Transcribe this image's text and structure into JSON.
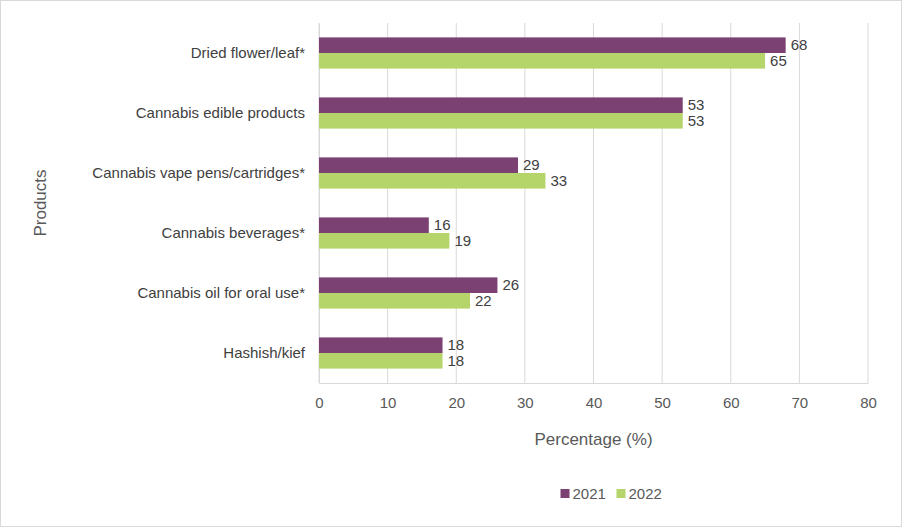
{
  "chart_data": {
    "type": "bar",
    "orientation": "horizontal",
    "categories": [
      "Dried flower/leaf*",
      "Cannabis edible products",
      "Cannabis vape pens/cartridges*",
      "Cannabis beverages*",
      "Cannabis oil for oral use*",
      "Hashish/kief"
    ],
    "series": [
      {
        "name": "2021",
        "color": "#7b4173",
        "values": [
          68,
          53,
          29,
          16,
          26,
          18
        ]
      },
      {
        "name": "2022",
        "color": "#b5d56a",
        "values": [
          65,
          53,
          33,
          19,
          22,
          18
        ]
      }
    ],
    "x_label": "Percentage (%)",
    "y_label": "Products",
    "xlim": [
      0,
      80
    ],
    "xticks": [
      0,
      10,
      20,
      30,
      40,
      50,
      60,
      70,
      80
    ],
    "grid": true,
    "data_labels": true,
    "legend": "bottom"
  }
}
